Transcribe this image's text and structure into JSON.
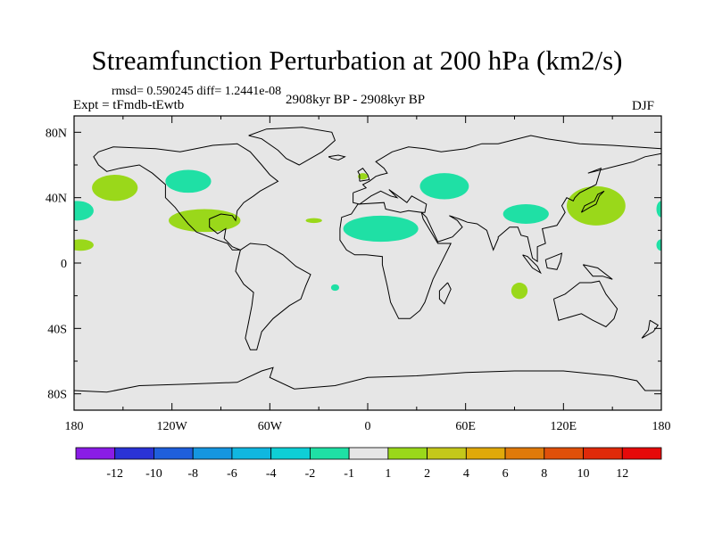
{
  "title": "Streamfunction Perturbation at 200 hPa (km2/s)",
  "subtitle_stats": "rmsd= 0.590245 diff= 1.2441e-08",
  "experiment": "Expt = tFmdb-tEwtb",
  "period": "2908kyr BP - 2908kyr BP",
  "season": "DJF",
  "lat_labels": [
    "80N",
    "40N",
    "0",
    "40S",
    "80S"
  ],
  "lon_labels": [
    "180",
    "120W",
    "60W",
    "0",
    "60E",
    "120E",
    "180"
  ],
  "colorbar": {
    "labels": [
      "-12",
      "-10",
      "-8",
      "-6",
      "-4",
      "-2",
      "-1",
      "1",
      "2",
      "4",
      "6",
      "8",
      "10",
      "12"
    ],
    "colors": [
      "#8a1ce6",
      "#2a33d6",
      "#1f5fdc",
      "#1596e0",
      "#10b7e0",
      "#0ecfd6",
      "#1fe0a5",
      "#e6e6e6",
      "#9ad81a",
      "#c4c81a",
      "#e0a90a",
      "#e07a0a",
      "#e0500a",
      "#e02a0a",
      "#e60a0a"
    ]
  },
  "map_colors": {
    "background": "#e6e6e6",
    "negative_anomaly": "#1fe0a5",
    "positive_anomaly": "#9ad81a"
  },
  "anomaly_regions": [
    {
      "name": "north-pacific-east",
      "sign": "positive",
      "lon": -155,
      "lat": 46,
      "rlon": 14,
      "rlat": 8
    },
    {
      "name": "north-america-west",
      "sign": "negative",
      "lon": -110,
      "lat": 50,
      "rlon": 14,
      "rlat": 7
    },
    {
      "name": "central-america",
      "sign": "positive",
      "lon": -100,
      "lat": 26,
      "rlon": 22,
      "rlat": 7
    },
    {
      "name": "north-atlantic-small",
      "sign": "positive",
      "lon": -33,
      "lat": 26,
      "rlon": 5,
      "rlat": 1.5
    },
    {
      "name": "east-pacific-west-edge",
      "sign": "negative",
      "lon": -178,
      "lat": 32,
      "rlon": 10,
      "rlat": 6
    },
    {
      "name": "east-pacific-low",
      "sign": "positive",
      "lon": -176,
      "lat": 11,
      "rlon": 8,
      "rlat": 3.5
    },
    {
      "name": "north-africa",
      "sign": "negative",
      "lon": 8,
      "lat": 21,
      "rlon": 23,
      "rlat": 8
    },
    {
      "name": "britain",
      "sign": "positive",
      "lon": -3,
      "lat": 53,
      "rlon": 3,
      "rlat": 2
    },
    {
      "name": "middle-east",
      "sign": "negative",
      "lon": 47,
      "lat": 47,
      "rlon": 15,
      "rlat": 8
    },
    {
      "name": "south-asia",
      "sign": "negative",
      "lon": 97,
      "lat": 30,
      "rlon": 14,
      "rlat": 6
    },
    {
      "name": "east-asia-japan",
      "sign": "positive",
      "lon": 140,
      "lat": 35,
      "rlon": 18,
      "rlat": 12
    },
    {
      "name": "north-pacific-west-edge",
      "sign": "negative",
      "lon": 180,
      "lat": 33,
      "rlon": 3,
      "rlat": 5
    },
    {
      "name": "pacific-east-edge-low",
      "sign": "negative",
      "lon": 180,
      "lat": 11,
      "rlon": 3,
      "rlat": 3.5
    },
    {
      "name": "south-atlantic",
      "sign": "negative",
      "lon": -20,
      "lat": -15,
      "rlon": 2.5,
      "rlat": 2
    },
    {
      "name": "indian-ocean",
      "sign": "positive",
      "lon": 93,
      "lat": -17,
      "rlon": 5,
      "rlat": 5
    }
  ],
  "coastlines": [
    {
      "name": "north-america",
      "pts": [
        [
          -165,
          68
        ],
        [
          -156,
          71
        ],
        [
          -130,
          70
        ],
        [
          -115,
          68
        ],
        [
          -95,
          72
        ],
        [
          -80,
          73
        ],
        [
          -72,
          68
        ],
        [
          -65,
          60
        ],
        [
          -60,
          54
        ],
        [
          -55,
          50
        ],
        [
          -66,
          44
        ],
        [
          -70,
          41
        ],
        [
          -76,
          37
        ],
        [
          -80,
          32
        ],
        [
          -81,
          26
        ],
        [
          -83,
          29
        ],
        [
          -90,
          30
        ],
        [
          -97,
          27
        ],
        [
          -97,
          22
        ],
        [
          -92,
          18
        ],
        [
          -87,
          21
        ],
        [
          -88,
          15
        ],
        [
          -83,
          10
        ],
        [
          -78,
          8
        ],
        [
          -83,
          8
        ],
        [
          -86,
          12
        ],
        [
          -92,
          14
        ],
        [
          -105,
          19
        ],
        [
          -110,
          24
        ],
        [
          -115,
          30
        ],
        [
          -118,
          34
        ],
        [
          -124,
          40
        ],
        [
          -124,
          48
        ],
        [
          -132,
          55
        ],
        [
          -140,
          60
        ],
        [
          -152,
          58
        ],
        [
          -160,
          56
        ],
        [
          -165,
          60
        ],
        [
          -168,
          65
        ],
        [
          -165,
          68
        ]
      ]
    },
    {
      "name": "south-america",
      "pts": [
        [
          -78,
          8
        ],
        [
          -72,
          12
        ],
        [
          -62,
          11
        ],
        [
          -52,
          5
        ],
        [
          -44,
          -2
        ],
        [
          -35,
          -7
        ],
        [
          -38,
          -14
        ],
        [
          -41,
          -22
        ],
        [
          -48,
          -26
        ],
        [
          -58,
          -34
        ],
        [
          -65,
          -42
        ],
        [
          -68,
          -53
        ],
        [
          -72,
          -53
        ],
        [
          -75,
          -46
        ],
        [
          -73,
          -36
        ],
        [
          -71,
          -26
        ],
        [
          -70,
          -18
        ],
        [
          -76,
          -13
        ],
        [
          -81,
          -5
        ],
        [
          -80,
          0
        ],
        [
          -78,
          8
        ]
      ]
    },
    {
      "name": "greenland",
      "pts": [
        [
          -73,
          78
        ],
        [
          -62,
          82
        ],
        [
          -40,
          83
        ],
        [
          -22,
          80
        ],
        [
          -20,
          75
        ],
        [
          -28,
          68
        ],
        [
          -42,
          60
        ],
        [
          -50,
          64
        ],
        [
          -55,
          69
        ],
        [
          -65,
          76
        ],
        [
          -73,
          78
        ]
      ]
    },
    {
      "name": "eurasia",
      "pts": [
        [
          -9,
          43
        ],
        [
          -9,
          37
        ],
        [
          -5,
          36
        ],
        [
          2,
          41
        ],
        [
          8,
          44
        ],
        [
          14,
          41
        ],
        [
          18,
          40
        ],
        [
          13,
          45
        ],
        [
          20,
          40
        ],
        [
          24,
          37
        ],
        [
          27,
          41
        ],
        [
          36,
          36
        ],
        [
          35,
          31
        ],
        [
          33,
          31
        ],
        [
          36,
          28
        ],
        [
          43,
          13
        ],
        [
          52,
          16
        ],
        [
          58,
          22
        ],
        [
          55,
          26
        ],
        [
          50,
          29
        ],
        [
          56,
          27
        ],
        [
          61,
          25
        ],
        [
          67,
          24
        ],
        [
          73,
          20
        ],
        [
          77,
          8
        ],
        [
          80,
          15
        ],
        [
          80,
          16
        ],
        [
          87,
          22
        ],
        [
          92,
          22
        ],
        [
          94,
          17
        ],
        [
          98,
          16
        ],
        [
          101,
          3
        ],
        [
          104,
          1
        ],
        [
          104,
          10
        ],
        [
          109,
          12
        ],
        [
          107,
          21
        ],
        [
          116,
          23
        ],
        [
          121,
          31
        ],
        [
          119,
          35
        ],
        [
          122,
          40
        ],
        [
          126,
          38
        ],
        [
          127,
          40
        ],
        [
          130,
          43
        ],
        [
          140,
          48
        ],
        [
          143,
          58
        ],
        [
          135,
          55
        ],
        [
          155,
          60
        ],
        [
          163,
          62
        ],
        [
          170,
          65
        ],
        [
          180,
          67
        ],
        [
          180,
          70
        ],
        [
          150,
          72
        ],
        [
          130,
          73
        ],
        [
          110,
          76
        ],
        [
          100,
          78
        ],
        [
          80,
          73
        ],
        [
          70,
          73
        ],
        [
          60,
          70
        ],
        [
          45,
          68
        ],
        [
          35,
          70
        ],
        [
          25,
          71
        ],
        [
          15,
          68
        ],
        [
          5,
          62
        ],
        [
          10,
          58
        ],
        [
          12,
          55
        ],
        [
          8,
          54
        ],
        [
          5,
          53
        ],
        [
          1,
          50
        ],
        [
          -3,
          48
        ],
        [
          -1,
          46
        ],
        [
          -9,
          43
        ]
      ]
    },
    {
      "name": "africa",
      "pts": [
        [
          -17,
          21
        ],
        [
          -16,
          28
        ],
        [
          -10,
          30
        ],
        [
          -6,
          36
        ],
        [
          10,
          37
        ],
        [
          11,
          33
        ],
        [
          20,
          31
        ],
        [
          25,
          32
        ],
        [
          33,
          31
        ],
        [
          34,
          27
        ],
        [
          43,
          12
        ],
        [
          51,
          12
        ],
        [
          44,
          -2
        ],
        [
          40,
          -10
        ],
        [
          35,
          -24
        ],
        [
          32,
          -29
        ],
        [
          26,
          -34
        ],
        [
          19,
          -34
        ],
        [
          14,
          -24
        ],
        [
          12,
          -14
        ],
        [
          9,
          -1
        ],
        [
          9,
          4
        ],
        [
          -1,
          5
        ],
        [
          -8,
          5
        ],
        [
          -13,
          8
        ],
        [
          -17,
          14
        ],
        [
          -17,
          21
        ]
      ]
    },
    {
      "name": "madagascar",
      "pts": [
        [
          49,
          -12
        ],
        [
          51,
          -16
        ],
        [
          47,
          -25
        ],
        [
          44,
          -22
        ],
        [
          44,
          -17
        ],
        [
          49,
          -12
        ]
      ]
    },
    {
      "name": "australia",
      "pts": [
        [
          114,
          -22
        ],
        [
          121,
          -19
        ],
        [
          130,
          -12
        ],
        [
          137,
          -12
        ],
        [
          142,
          -11
        ],
        [
          146,
          -19
        ],
        [
          153,
          -28
        ],
        [
          151,
          -34
        ],
        [
          146,
          -39
        ],
        [
          138,
          -35
        ],
        [
          131,
          -31
        ],
        [
          117,
          -35
        ],
        [
          114,
          -22
        ]
      ]
    },
    {
      "name": "new-zealand",
      "pts": [
        [
          173,
          -35
        ],
        [
          178,
          -38
        ],
        [
          175,
          -42
        ],
        [
          168,
          -46
        ],
        [
          172,
          -41
        ],
        [
          173,
          -35
        ]
      ]
    },
    {
      "name": "japan",
      "pts": [
        [
          131,
          31
        ],
        [
          136,
          34
        ],
        [
          140,
          36
        ],
        [
          142,
          41
        ],
        [
          145,
          44
        ],
        [
          141,
          42
        ],
        [
          139,
          38
        ],
        [
          133,
          35
        ],
        [
          131,
          31
        ]
      ]
    },
    {
      "name": "britain-isle",
      "pts": [
        [
          -5,
          50
        ],
        [
          1,
          51
        ],
        [
          0,
          54
        ],
        [
          -3,
          58
        ],
        [
          -6,
          56
        ],
        [
          -5,
          54
        ],
        [
          -5,
          50
        ]
      ]
    },
    {
      "name": "borneo",
      "pts": [
        [
          109,
          2
        ],
        [
          114,
          4
        ],
        [
          119,
          6
        ],
        [
          118,
          1
        ],
        [
          116,
          -4
        ],
        [
          110,
          -3
        ],
        [
          109,
          2
        ]
      ]
    },
    {
      "name": "sumatra",
      "pts": [
        [
          95,
          5
        ],
        [
          98,
          4
        ],
        [
          104,
          -2
        ],
        [
          106,
          -6
        ],
        [
          101,
          -3
        ],
        [
          95,
          5
        ]
      ]
    },
    {
      "name": "new-guinea",
      "pts": [
        [
          132,
          -1
        ],
        [
          141,
          -3
        ],
        [
          150,
          -10
        ],
        [
          144,
          -8
        ],
        [
          138,
          -8
        ],
        [
          132,
          -1
        ]
      ]
    },
    {
      "name": "antarctica",
      "pts": [
        [
          -180,
          -78
        ],
        [
          -160,
          -79
        ],
        [
          -140,
          -75
        ],
        [
          -110,
          -74
        ],
        [
          -80,
          -73
        ],
        [
          -65,
          -66
        ],
        [
          -58,
          -64
        ],
        [
          -60,
          -70
        ],
        [
          -45,
          -77
        ],
        [
          -20,
          -75
        ],
        [
          0,
          -70
        ],
        [
          30,
          -69
        ],
        [
          60,
          -67
        ],
        [
          90,
          -66
        ],
        [
          120,
          -66
        ],
        [
          150,
          -69
        ],
        [
          165,
          -72
        ],
        [
          170,
          -78
        ],
        [
          180,
          -78
        ]
      ]
    },
    {
      "name": "iceland",
      "pts": [
        [
          -24,
          65
        ],
        [
          -18,
          66
        ],
        [
          -14,
          65
        ],
        [
          -18,
          63
        ],
        [
          -22,
          64
        ],
        [
          -24,
          65
        ]
      ]
    }
  ]
}
